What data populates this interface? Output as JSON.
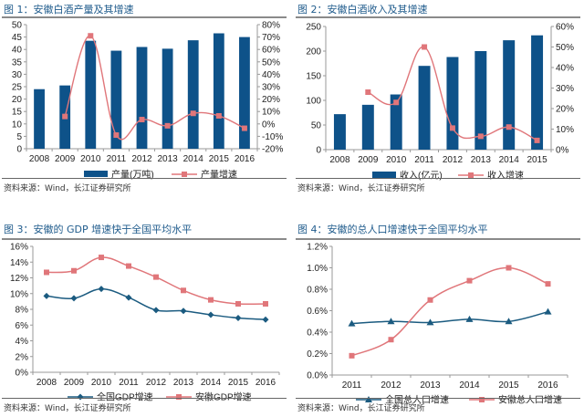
{
  "chart_data": [
    {
      "type": "bar",
      "title": "图 1：安徽白酒产量及其增速",
      "categories": [
        "2008",
        "2009",
        "2010",
        "2011",
        "2012",
        "2013",
        "2014",
        "2015",
        "2016"
      ],
      "series": [
        {
          "name": "产量(万吨)",
          "kind": "bar",
          "axis": "left",
          "values": [
            24,
            25.5,
            43.5,
            39.5,
            41,
            40.3,
            43.7,
            46.5,
            45
          ]
        },
        {
          "name": "产量增速",
          "kind": "line",
          "axis": "right",
          "values": [
            null,
            6,
            71,
            -9,
            3.5,
            -1.5,
            8.5,
            6.5,
            -3.5
          ]
        }
      ],
      "left_ylim": [
        0,
        50
      ],
      "left_ticks": [
        "0",
        "5",
        "10",
        "15",
        "20",
        "25",
        "30",
        "35",
        "40",
        "45",
        "50"
      ],
      "right_ylim": [
        -20,
        80
      ],
      "right_ticks": [
        "-20%",
        "-10%",
        "0%",
        "10%",
        "20%",
        "30%",
        "40%",
        "50%",
        "60%",
        "70%",
        "80%"
      ],
      "legend": "bottom",
      "source": "资料来源：Wind，长江证券研究所"
    },
    {
      "type": "bar",
      "title": "图 2：安徽白酒收入及其增速",
      "categories": [
        "2008",
        "2009",
        "2010",
        "2011",
        "2012",
        "2013",
        "2014",
        "2015"
      ],
      "series": [
        {
          "name": "收入(亿元)",
          "kind": "bar",
          "axis": "left",
          "values": [
            72,
            91,
            112,
            170,
            188,
            200,
            222,
            232
          ]
        },
        {
          "name": "收入增速",
          "kind": "line",
          "axis": "right",
          "values": [
            null,
            28,
            23,
            50,
            10.5,
            6.5,
            11,
            4.5
          ]
        }
      ],
      "left_ylim": [
        0,
        250
      ],
      "left_ticks": [
        "0",
        "50",
        "100",
        "150",
        "200",
        "250"
      ],
      "right_ylim": [
        0,
        60
      ],
      "right_ticks": [
        "0%",
        "10%",
        "20%",
        "30%",
        "40%",
        "50%",
        "60%"
      ],
      "legend": "bottom",
      "source": "资料来源：Wind，长江证券研究所"
    },
    {
      "type": "line",
      "title": "图 3：安徽的 GDP 增速快于全国平均水平",
      "categories": [
        "2008",
        "2009",
        "2010",
        "2011",
        "2012",
        "2013",
        "2014",
        "2015",
        "2016"
      ],
      "series": [
        {
          "name": "全国GDP增速",
          "marker": "diamond",
          "values": [
            9.7,
            9.4,
            10.6,
            9.5,
            7.9,
            7.8,
            7.3,
            6.9,
            6.7
          ]
        },
        {
          "name": "安徽GDP增速",
          "marker": "square",
          "values": [
            12.7,
            12.9,
            14.6,
            13.5,
            12.1,
            10.4,
            9.2,
            8.7,
            8.7
          ]
        }
      ],
      "ylim": [
        0,
        16
      ],
      "ticks": [
        "0%",
        "2%",
        "4%",
        "6%",
        "8%",
        "10%",
        "12%",
        "14%",
        "16%"
      ],
      "legend": "bottom",
      "source": "资料来源：Wind，长江证券研究所"
    },
    {
      "type": "line",
      "title": "图 4：安徽的总人口增速快于全国平均水平",
      "categories": [
        "2011",
        "2012",
        "2013",
        "2014",
        "2015",
        "2016"
      ],
      "series": [
        {
          "name": "全国总人口增速",
          "marker": "triangle",
          "values": [
            0.48,
            0.5,
            0.49,
            0.52,
            0.5,
            0.59
          ]
        },
        {
          "name": "安徽总人口增速",
          "marker": "square",
          "values": [
            0.18,
            0.33,
            0.7,
            0.88,
            1.0,
            0.85
          ]
        }
      ],
      "ylim": [
        0,
        1.2
      ],
      "ticks": [
        "0.0%",
        "0.2%",
        "0.4%",
        "0.6%",
        "0.8%",
        "1.0%",
        "1.2%"
      ],
      "legend": "bottom",
      "source": "资料来源：Wind，长江证券研究所"
    }
  ],
  "colors": {
    "bar": "#0e5289",
    "line_red": "#e0767a",
    "line_blue": "#1b5b80",
    "title": "#1f5b8c"
  }
}
